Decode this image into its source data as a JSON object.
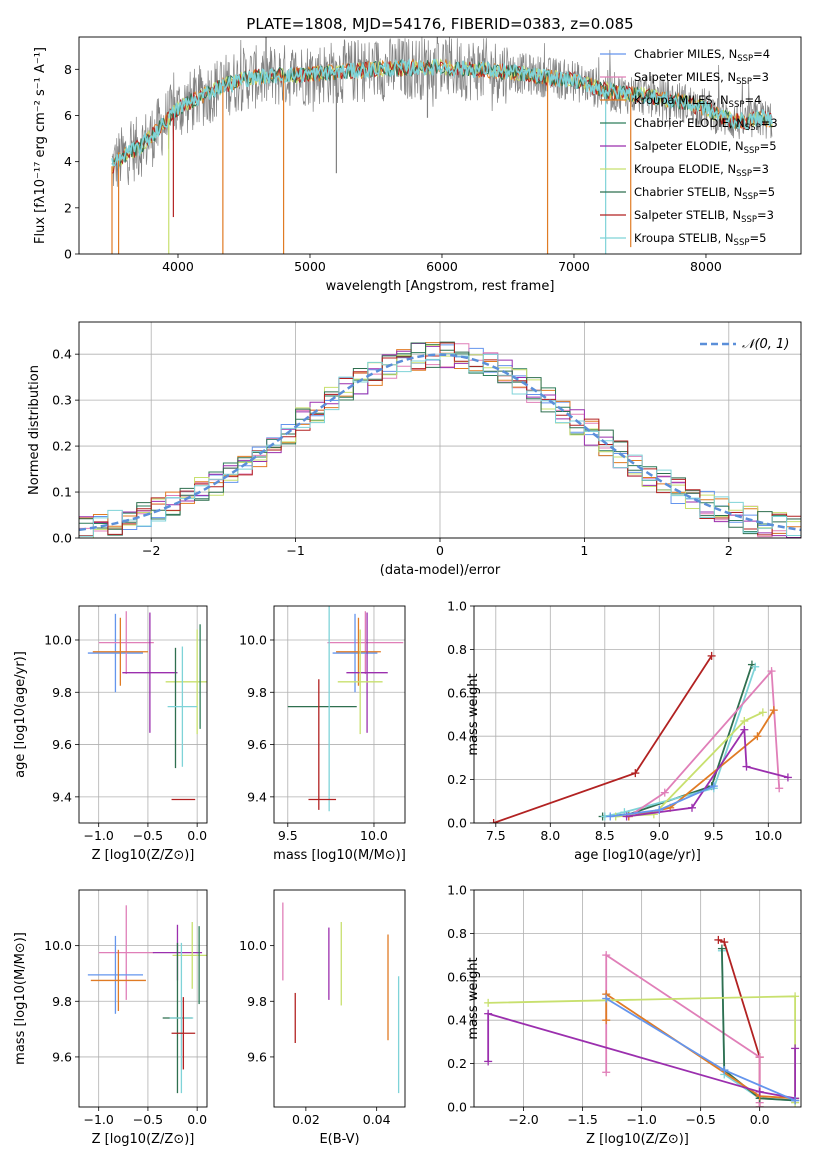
{
  "colors": {
    "gray": "#808080",
    "blue": "#6495ed",
    "orange": "#e07b24",
    "green": "#2e7d5b",
    "purple": "#9b2fae",
    "lime": "#c8e06e",
    "darkgreen": "#2f6f4f",
    "red": "#b22222",
    "cyan": "#7fd3d8",
    "pink": "#e07fb8"
  },
  "chart_data": [
    {
      "id": "spectrum",
      "type": "line",
      "title": "PLATE=1808, MJD=54176, FIBERID=0383, z=0.085",
      "xlabel": "wavelength [Angstrom, rest frame]",
      "ylabel": "Flux [fλ10⁻¹⁷ erg cm⁻² s⁻¹ A⁻¹]",
      "xlim": [
        3250,
        8720
      ],
      "ylim": [
        0,
        9.4
      ],
      "xticks": [
        4000,
        5000,
        6000,
        7000,
        8000
      ],
      "yticks": [
        0,
        2,
        4,
        6,
        8
      ],
      "series": [
        {
          "name": "Chabrier MILES, N_SSP=4",
          "color": "blue"
        },
        {
          "name": "Salpeter MILES, N_SSP=3",
          "color": "pink"
        },
        {
          "name": "Kroupa MILES, N_SSP=4",
          "color": "orange"
        },
        {
          "name": "Chabrier ELODIE, N_SSP=3",
          "color": "green"
        },
        {
          "name": "Salpeter ELODIE, N_SSP=5",
          "color": "purple"
        },
        {
          "name": "Kroupa ELODIE, N_SSP=3",
          "color": "lime"
        },
        {
          "name": "Chabrier STELIB, N_SSP=5",
          "color": "darkgreen"
        },
        {
          "name": "Salpeter STELIB, N_SSP=3",
          "color": "red"
        },
        {
          "name": "Kroupa STELIB, N_SSP=5",
          "color": "cyan"
        }
      ],
      "continuum": [
        [
          3500,
          3.8
        ],
        [
          3600,
          4.3
        ],
        [
          3700,
          4.6
        ],
        [
          3800,
          5.1
        ],
        [
          3900,
          5.7
        ],
        [
          4000,
          6.3
        ],
        [
          4100,
          6.6
        ],
        [
          4200,
          6.9
        ],
        [
          4300,
          7.2
        ],
        [
          4400,
          7.4
        ],
        [
          4500,
          7.6
        ],
        [
          4700,
          7.7
        ],
        [
          5000,
          7.8
        ],
        [
          5500,
          8.0
        ],
        [
          6000,
          8.1
        ],
        [
          6500,
          7.9
        ],
        [
          7000,
          7.5
        ],
        [
          7300,
          7.0
        ],
        [
          7500,
          6.9
        ],
        [
          7800,
          6.6
        ],
        [
          8000,
          6.3
        ],
        [
          8100,
          6.0
        ],
        [
          8200,
          5.8
        ],
        [
          8300,
          5.7
        ],
        [
          8400,
          5.9
        ],
        [
          8500,
          5.8
        ]
      ],
      "dips": [
        {
          "x": 3500,
          "y": 0
        },
        {
          "x": 3550,
          "y": 0
        },
        {
          "x": 3930,
          "y": 0
        },
        {
          "x": 3965,
          "y": 1.6
        },
        {
          "x": 4340,
          "y": 0
        },
        {
          "x": 4800,
          "y": 0
        },
        {
          "x": 5200,
          "y": 3.5
        },
        {
          "x": 5890,
          "y": 5.9
        },
        {
          "x": 6800,
          "y": 0
        },
        {
          "x": 7240,
          "y": 0
        },
        {
          "x": 7430,
          "y": 0.3
        }
      ]
    },
    {
      "id": "residuals",
      "type": "line",
      "xlabel": "(data-model)/error",
      "ylabel": "Normed distribution",
      "xlim": [
        -2.5,
        2.5
      ],
      "ylim": [
        0,
        0.47
      ],
      "xticks": [
        -2,
        -1,
        0,
        1,
        2
      ],
      "yticks": [
        0.0,
        0.1,
        0.2,
        0.3,
        0.4
      ],
      "legend": "$\\mathcal{N}(0, 1)$",
      "grid": true
    },
    {
      "id": "age-vs-z",
      "type": "scatter",
      "xlabel": "Z [log10(Z/Z⊙)]",
      "ylabel": "age  [log10(age/yr)]",
      "xlim": [
        -1.2,
        0.1
      ],
      "ylim": [
        9.3,
        10.13
      ],
      "xticks": [
        -1.0,
        -0.5,
        0.0
      ],
      "yticks": [
        9.4,
        9.6,
        9.8,
        10.0
      ],
      "grid": true,
      "points": [
        {
          "color": "blue",
          "x": -0.83,
          "y": 9.95,
          "dx": 0.28,
          "dy": 0.15
        },
        {
          "color": "pink",
          "x": -0.72,
          "y": 9.99,
          "dx": 0.28,
          "dy": 0.12
        },
        {
          "color": "orange",
          "x": -0.78,
          "y": 9.955,
          "dx": 0.28,
          "dy": 0.13
        },
        {
          "color": "purple",
          "x": -0.48,
          "y": 9.875,
          "dx": 0.28,
          "dy": 0.23
        },
        {
          "color": "lime",
          "x": 0.0,
          "y": 9.84,
          "dx": 0.32,
          "dy": 0.2
        },
        {
          "color": "green",
          "x": 0.03,
          "y": 9.86,
          "dx": 0.0,
          "dy": 0.2
        },
        {
          "color": "darkgreen",
          "x": -0.22,
          "y": 9.74,
          "dx": 0.0,
          "dy": 0.23
        },
        {
          "color": "cyan",
          "x": -0.15,
          "y": 9.745,
          "dx": 0.15,
          "dy": 0.23
        },
        {
          "color": "red",
          "x": -0.14,
          "y": 9.39,
          "dx": 0.12,
          "dy": 0.0
        }
      ]
    },
    {
      "id": "age-vs-mass",
      "type": "scatter",
      "xlabel": "mass [log10(M/M⊙)]",
      "ylabel": "",
      "xlim": [
        9.42,
        10.18
      ],
      "ylim": [
        9.3,
        10.13
      ],
      "xticks": [
        9.5,
        10.0
      ],
      "yticks": [
        9.4,
        9.6,
        9.8,
        10.0
      ],
      "grid": true,
      "points": [
        {
          "color": "pink",
          "x": 9.95,
          "y": 9.99,
          "dx": 0.22,
          "dy": 0.12
        },
        {
          "color": "blue",
          "x": 9.89,
          "y": 9.95,
          "dx": 0.13,
          "dy": 0.15
        },
        {
          "color": "orange",
          "x": 9.91,
          "y": 9.955,
          "dx": 0.13,
          "dy": 0.13
        },
        {
          "color": "purple",
          "x": 9.96,
          "y": 9.875,
          "dx": 0.12,
          "dy": 0.23
        },
        {
          "color": "lime",
          "x": 9.92,
          "y": 9.84,
          "dx": 0.13,
          "dy": 0.2
        },
        {
          "color": "darkgreen",
          "x": 9.7,
          "y": 9.745,
          "dx": 0.2,
          "dy": 0.0
        },
        {
          "color": "cyan",
          "x": 9.74,
          "y": 9.745,
          "dx": 0.0,
          "dy": 0.4
        },
        {
          "color": "red",
          "x": 9.7,
          "y": 9.39,
          "dx": 0.08,
          "dy": 0.0
        },
        {
          "color": "red",
          "x": 9.68,
          "y": 9.6,
          "dx": 0.0,
          "dy": 0.25
        }
      ]
    },
    {
      "id": "weight-vs-age",
      "type": "line",
      "xlabel": "age  [log10(age/yr)]",
      "ylabel": "mass weight",
      "xlim": [
        7.3,
        10.3
      ],
      "ylim": [
        0,
        1.0
      ],
      "xticks": [
        7.5,
        8.0,
        8.5,
        9.0,
        9.5,
        10.0
      ],
      "yticks": [
        0.0,
        0.2,
        0.4,
        0.6,
        0.8,
        1.0
      ],
      "grid": true,
      "series": [
        {
          "color": "red",
          "x": [
            7.48,
            8.78,
            9.48
          ],
          "y": [
            0.0,
            0.23,
            0.77
          ]
        },
        {
          "color": "darkgreen",
          "x": [
            8.48,
            8.72,
            9.48,
            9.85
          ],
          "y": [
            0.03,
            0.04,
            0.17,
            0.73
          ]
        },
        {
          "color": "cyan",
          "x": [
            8.5,
            8.68,
            9.5,
            9.88
          ],
          "y": [
            0.03,
            0.05,
            0.16,
            0.72
          ]
        },
        {
          "color": "pink",
          "x": [
            8.72,
            9.05,
            10.03,
            10.1
          ],
          "y": [
            0.03,
            0.14,
            0.7,
            0.16
          ]
        },
        {
          "color": "orange",
          "x": [
            8.72,
            9.1,
            9.9,
            10.05
          ],
          "y": [
            0.03,
            0.07,
            0.4,
            0.52
          ]
        },
        {
          "color": "lime",
          "x": [
            8.6,
            8.95,
            9.78,
            9.95
          ],
          "y": [
            0.03,
            0.04,
            0.47,
            0.51
          ]
        },
        {
          "color": "purple",
          "x": [
            8.7,
            9.3,
            9.78,
            9.8,
            10.18
          ],
          "y": [
            0.03,
            0.07,
            0.43,
            0.26,
            0.21
          ]
        },
        {
          "color": "blue",
          "x": [
            8.55,
            9.0,
            9.5
          ],
          "y": [
            0.03,
            0.06,
            0.17
          ]
        }
      ]
    },
    {
      "id": "mass-vs-z",
      "type": "scatter",
      "xlabel": "Z [log10(Z/Z⊙)]",
      "ylabel": "mass [log10(M/M⊙)]",
      "xlim": [
        -1.2,
        0.1
      ],
      "ylim": [
        9.42,
        10.2
      ],
      "xticks": [
        -1.0,
        -0.5,
        0.0
      ],
      "yticks": [
        9.6,
        9.8,
        10.0
      ],
      "grid": true,
      "points": [
        {
          "color": "pink",
          "x": -0.72,
          "y": 9.975,
          "dx": 0.28,
          "dy": 0.17
        },
        {
          "color": "blue",
          "x": -0.83,
          "y": 9.895,
          "dx": 0.28,
          "dy": 0.14
        },
        {
          "color": "orange",
          "x": -0.8,
          "y": 9.875,
          "dx": 0.28,
          "dy": 0.11
        },
        {
          "color": "purple",
          "x": -0.2,
          "y": 9.975,
          "dx": 0.25,
          "dy": 0.1
        },
        {
          "color": "lime",
          "x": -0.05,
          "y": 9.965,
          "dx": 0.2,
          "dy": 0.12
        },
        {
          "color": "green",
          "x": 0.02,
          "y": 9.93,
          "dx": 0.0,
          "dy": 0.14
        },
        {
          "color": "darkgreen",
          "x": -0.2,
          "y": 9.74,
          "dx": 0.15,
          "dy": 0.27
        },
        {
          "color": "cyan",
          "x": -0.16,
          "y": 9.74,
          "dx": 0.12,
          "dy": 0.27
        },
        {
          "color": "red",
          "x": -0.14,
          "y": 9.685,
          "dx": 0.12,
          "dy": 0.13
        }
      ]
    },
    {
      "id": "mass-vs-ebv",
      "type": "scatter",
      "xlabel": "E(B-V)",
      "ylabel": "",
      "xlim": [
        0.011,
        0.048
      ],
      "ylim": [
        9.42,
        10.2
      ],
      "xticks": [
        0.02,
        0.04
      ],
      "yticks": [
        9.6,
        9.8,
        10.0
      ],
      "grid": false,
      "points": [
        {
          "color": "pink",
          "x": 0.0135,
          "y": 10.015,
          "dx": 0.0,
          "dy": 0.14
        },
        {
          "color": "red",
          "x": 0.017,
          "y": 9.74,
          "dx": 0.0,
          "dy": 0.09
        },
        {
          "color": "purple",
          "x": 0.0265,
          "y": 9.935,
          "dx": 0.0,
          "dy": 0.13
        },
        {
          "color": "lime",
          "x": 0.03,
          "y": 9.935,
          "dx": 0.0,
          "dy": 0.15
        },
        {
          "color": "orange",
          "x": 0.0432,
          "y": 9.85,
          "dx": 0.0,
          "dy": 0.19
        },
        {
          "color": "cyan",
          "x": 0.0462,
          "y": 9.68,
          "dx": 0.0,
          "dy": 0.21
        }
      ]
    },
    {
      "id": "weight-vs-z",
      "type": "line",
      "xlabel": "Z [log10(Z/Z⊙)]",
      "ylabel": "mass weight",
      "xlim": [
        -2.42,
        0.35
      ],
      "ylim": [
        0,
        1.0
      ],
      "xticks": [
        -2.0,
        -1.5,
        -1.0,
        -0.5,
        0.0
      ],
      "yticks": [
        0.0,
        0.2,
        0.4,
        0.6,
        0.8,
        1.0
      ],
      "grid": true,
      "series": [
        {
          "color": "red",
          "x": [
            -0.35,
            -0.3,
            0.0,
            0.0
          ],
          "y": [
            0.77,
            0.76,
            0.23,
            0.0
          ]
        },
        {
          "color": "pink",
          "x": [
            -1.3,
            -1.3,
            -0.0,
            0.0,
            0.0
          ],
          "y": [
            0.16,
            0.7,
            0.23,
            0.02,
            0.0
          ]
        },
        {
          "color": "cyan",
          "x": [
            -0.32,
            -0.3,
            0.0,
            0.3
          ],
          "y": [
            0.72,
            0.15,
            0.04,
            0.03
          ]
        },
        {
          "color": "darkgreen",
          "x": [
            -0.32,
            -0.3,
            0.0,
            0.3
          ],
          "y": [
            0.73,
            0.17,
            0.04,
            0.03
          ]
        },
        {
          "color": "orange",
          "x": [
            -1.3,
            -1.3,
            -0.0,
            0.3
          ],
          "y": [
            0.4,
            0.52,
            0.05,
            0.04
          ]
        },
        {
          "color": "lime",
          "x": [
            -2.3,
            0.3,
            0.3,
            0.3
          ],
          "y": [
            0.48,
            0.51,
            0.04,
            0.02
          ]
        },
        {
          "color": "purple",
          "x": [
            -2.3,
            -2.3,
            0.0,
            0.3,
            0.3
          ],
          "y": [
            0.21,
            0.43,
            0.07,
            0.04,
            0.27
          ]
        },
        {
          "color": "blue",
          "x": [
            -1.3,
            -0.3,
            0.3
          ],
          "y": [
            0.5,
            0.17,
            0.03
          ]
        }
      ]
    }
  ]
}
